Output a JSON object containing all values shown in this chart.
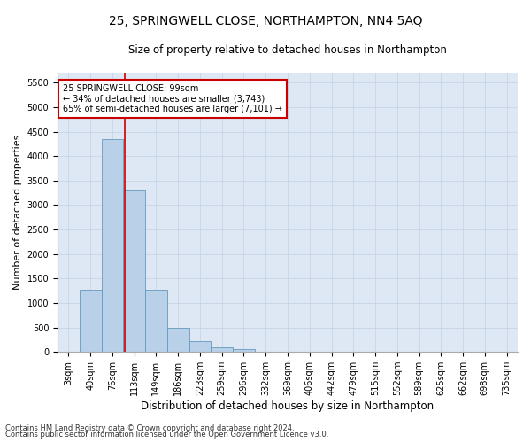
{
  "title1": "25, SPRINGWELL CLOSE, NORTHAMPTON, NN4 5AQ",
  "title2": "Size of property relative to detached houses in Northampton",
  "xlabel": "Distribution of detached houses by size in Northampton",
  "ylabel": "Number of detached properties",
  "footer1": "Contains HM Land Registry data © Crown copyright and database right 2024.",
  "footer2": "Contains public sector information licensed under the Open Government Licence v3.0.",
  "bar_labels": [
    "3sqm",
    "40sqm",
    "76sqm",
    "113sqm",
    "149sqm",
    "186sqm",
    "223sqm",
    "259sqm",
    "296sqm",
    "332sqm",
    "369sqm",
    "406sqm",
    "442sqm",
    "479sqm",
    "515sqm",
    "552sqm",
    "589sqm",
    "625sqm",
    "662sqm",
    "698sqm",
    "735sqm"
  ],
  "bar_values": [
    0,
    1270,
    4340,
    3300,
    1270,
    490,
    220,
    90,
    60,
    0,
    0,
    0,
    0,
    0,
    0,
    0,
    0,
    0,
    0,
    0,
    0
  ],
  "bar_color": "#b8d0e8",
  "bar_edge_color": "#6699bb",
  "grid_color": "#c8d4e8",
  "bg_color": "#dde8f4",
  "vline_x": 2.55,
  "vline_color": "#cc0000",
  "annotation_line1": "25 SPRINGWELL CLOSE: 99sqm",
  "annotation_line2": "← 34% of detached houses are smaller (3,743)",
  "annotation_line3": "65% of semi-detached houses are larger (7,101) →",
  "annotation_box_color": "#ffffff",
  "annotation_box_edge": "#cc0000",
  "ylim": [
    0,
    5700
  ],
  "yticks": [
    0,
    500,
    1000,
    1500,
    2000,
    2500,
    3000,
    3500,
    4000,
    4500,
    5000,
    5500
  ],
  "title1_fontsize": 10,
  "title2_fontsize": 8.5,
  "xlabel_fontsize": 8.5,
  "ylabel_fontsize": 8,
  "tick_fontsize": 7,
  "annotation_fontsize": 7,
  "footer_fontsize": 6
}
